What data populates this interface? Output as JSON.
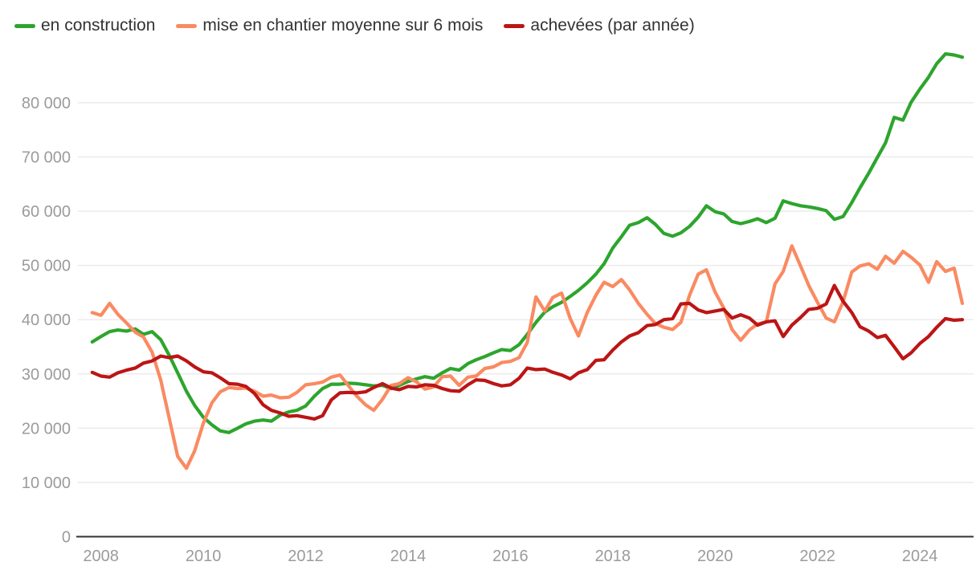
{
  "chart_data": {
    "type": "line",
    "title": "",
    "grid": "horizontal",
    "legend_position": "top-left",
    "x_axis": {
      "range": [
        2007.55,
        2025.05
      ],
      "ticks": [
        2008,
        2010,
        2012,
        2014,
        2016,
        2018,
        2020,
        2022,
        2024
      ],
      "tick_labels": [
        "2008",
        "2010",
        "2012",
        "2014",
        "2016",
        "2018",
        "2020",
        "2022",
        "2024"
      ]
    },
    "y_axis": {
      "range": [
        0,
        90000
      ],
      "ticks": [
        0,
        10000,
        20000,
        30000,
        40000,
        50000,
        60000,
        70000,
        80000
      ],
      "tick_labels": [
        "0",
        "10 000",
        "20 000",
        "30 000",
        "40 000",
        "50 000",
        "60 000",
        "70 000",
        "80 000"
      ]
    },
    "axis_colors": {
      "grid": "#e8e8e8",
      "zero_line": "#333333",
      "tick_text": "#9b9b9b"
    },
    "x": [
      2007.83,
      2008.0,
      2008.17,
      2008.33,
      2008.5,
      2008.67,
      2008.83,
      2009.0,
      2009.17,
      2009.33,
      2009.5,
      2009.67,
      2009.83,
      2010.0,
      2010.17,
      2010.33,
      2010.5,
      2010.67,
      2010.83,
      2011.0,
      2011.17,
      2011.33,
      2011.5,
      2011.67,
      2011.83,
      2012.0,
      2012.17,
      2012.33,
      2012.5,
      2012.67,
      2012.83,
      2013.0,
      2013.17,
      2013.33,
      2013.5,
      2013.67,
      2013.83,
      2014.0,
      2014.17,
      2014.33,
      2014.5,
      2014.67,
      2014.83,
      2015.0,
      2015.17,
      2015.33,
      2015.5,
      2015.67,
      2015.83,
      2016.0,
      2016.17,
      2016.33,
      2016.5,
      2016.67,
      2016.83,
      2017.0,
      2017.17,
      2017.33,
      2017.5,
      2017.67,
      2017.83,
      2018.0,
      2018.17,
      2018.33,
      2018.5,
      2018.67,
      2018.83,
      2019.0,
      2019.17,
      2019.33,
      2019.5,
      2019.67,
      2019.83,
      2020.0,
      2020.17,
      2020.33,
      2020.5,
      2020.67,
      2020.83,
      2021.0,
      2021.17,
      2021.33,
      2021.5,
      2021.67,
      2021.83,
      2022.0,
      2022.17,
      2022.33,
      2022.5,
      2022.67,
      2022.83,
      2023.0,
      2023.17,
      2023.33,
      2023.5,
      2023.67,
      2023.83,
      2024.0,
      2024.17,
      2024.33,
      2024.5,
      2024.67,
      2024.83
    ],
    "series": [
      {
        "name": "en construction",
        "color": "#2da52d",
        "values": [
          35900,
          36900,
          37800,
          38100,
          37900,
          38300,
          37300,
          37800,
          36300,
          33500,
          30200,
          26800,
          24200,
          22000,
          20600,
          19500,
          19200,
          20000,
          20800,
          21300,
          21500,
          21300,
          22400,
          23000,
          23300,
          24100,
          25900,
          27300,
          28100,
          28100,
          28300,
          28200,
          28000,
          27800,
          27900,
          27300,
          27900,
          28600,
          29100,
          29500,
          29200,
          30200,
          31000,
          30700,
          31900,
          32600,
          33200,
          33900,
          34500,
          34300,
          35400,
          37300,
          39500,
          41400,
          42400,
          43200,
          44300,
          45400,
          46800,
          48400,
          50300,
          53200,
          55300,
          57400,
          57900,
          58800,
          57600,
          55900,
          55400,
          56000,
          57200,
          58900,
          61000,
          59900,
          59500,
          58100,
          57700,
          58100,
          58600,
          57900,
          58700,
          61900,
          61400,
          61000,
          60800,
          60500,
          60100,
          58500,
          59000,
          61600,
          64300,
          67000,
          69900,
          72600,
          77300,
          76800,
          80100,
          82500,
          84700,
          87200,
          89000,
          88800,
          88400
        ]
      },
      {
        "name": "mise en chantier moyenne sur 6 mois",
        "color": "#fa8a62",
        "values": [
          41300,
          40800,
          43000,
          41000,
          39400,
          37700,
          36800,
          34000,
          28800,
          22000,
          14800,
          12600,
          15800,
          20900,
          24700,
          26700,
          27500,
          27300,
          27400,
          26800,
          25900,
          26100,
          25600,
          25700,
          26600,
          28000,
          28200,
          28500,
          29400,
          29800,
          27900,
          25900,
          24300,
          23300,
          25300,
          27900,
          28200,
          29300,
          28500,
          27200,
          27600,
          29500,
          29600,
          27900,
          29400,
          29600,
          31000,
          31300,
          32100,
          32300,
          33000,
          35800,
          44200,
          41600,
          44100,
          44900,
          40200,
          37000,
          41300,
          44500,
          46900,
          46100,
          47400,
          45500,
          43000,
          41000,
          39300,
          38600,
          38200,
          39500,
          44500,
          48400,
          49200,
          45100,
          42100,
          38200,
          36200,
          38100,
          39200,
          39600,
          46600,
          48900,
          53600,
          49900,
          46300,
          43200,
          40300,
          39600,
          43300,
          48800,
          49900,
          50300,
          49300,
          51700,
          50400,
          52600,
          51500,
          50100,
          46900,
          50700,
          48900,
          49500,
          43000
        ]
      },
      {
        "name": "achevées (par année)",
        "color": "#bc1515",
        "values": [
          30300,
          29600,
          29400,
          30200,
          30700,
          31100,
          32000,
          32400,
          33300,
          33000,
          33300,
          32400,
          31300,
          30400,
          30200,
          29300,
          28200,
          28100,
          27700,
          26400,
          24300,
          23300,
          22800,
          22200,
          22300,
          22000,
          21700,
          22300,
          25200,
          26500,
          26600,
          26500,
          26700,
          27500,
          28200,
          27400,
          27100,
          27700,
          27600,
          28000,
          27900,
          27300,
          26900,
          26800,
          28000,
          28900,
          28800,
          28200,
          27800,
          28000,
          29200,
          31100,
          30800,
          30900,
          30300,
          29800,
          29100,
          30200,
          30800,
          32500,
          32600,
          34400,
          35900,
          37000,
          37600,
          38900,
          39100,
          40000,
          40200,
          42900,
          43000,
          41800,
          41300,
          41600,
          41900,
          40300,
          40900,
          40300,
          39000,
          39600,
          39800,
          36900,
          39000,
          40400,
          41900,
          42100,
          42900,
          46300,
          43400,
          41300,
          38700,
          37900,
          36700,
          37100,
          35000,
          32800,
          33900,
          35600,
          36900,
          38600,
          40200,
          39900,
          40000
        ]
      }
    ]
  }
}
